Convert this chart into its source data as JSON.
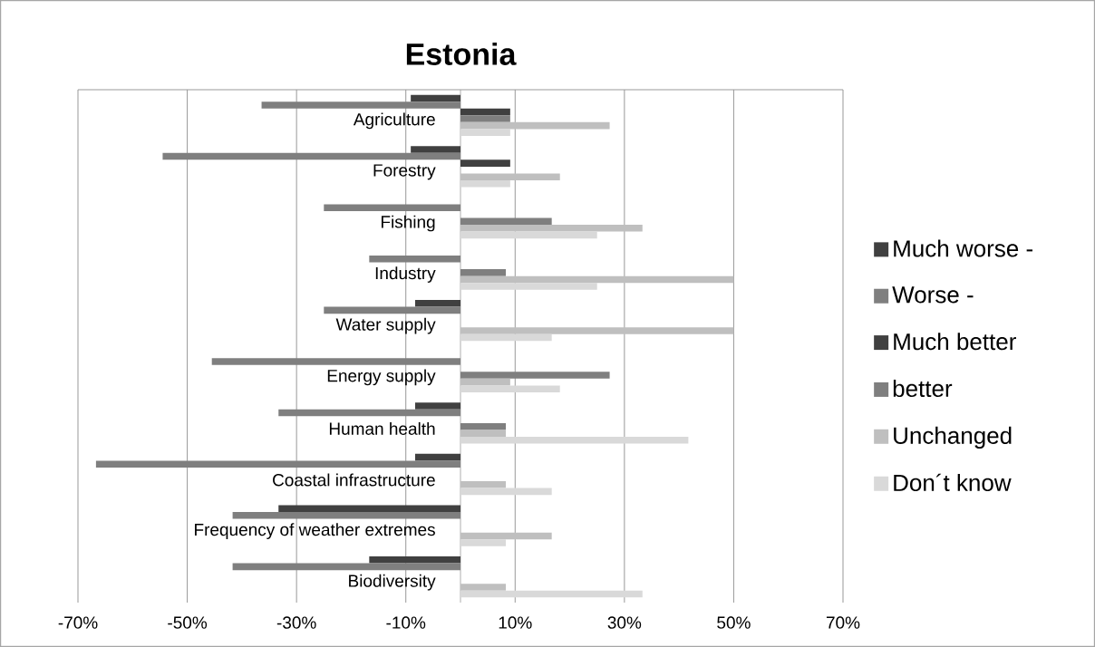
{
  "chart_data": {
    "type": "bar",
    "orientation": "horizontal",
    "title": "Estonia",
    "categories": [
      "Agriculture",
      "Forestry",
      "Fishing",
      "Industry",
      "Water supply",
      "Energy supply",
      "Human health",
      "Coastal infrastructure",
      "Frequency of weather extremes",
      "Biodiversity"
    ],
    "series": [
      {
        "name": "Much worse -",
        "color": "#404040",
        "values": [
          -9.1,
          -9.1,
          null,
          null,
          -8.3,
          null,
          -8.3,
          -8.3,
          -33.3,
          -16.7
        ]
      },
      {
        "name": "Worse -",
        "color": "#7f7f7f",
        "values": [
          -36.4,
          -54.5,
          -25,
          -16.7,
          -25,
          -45.5,
          -33.3,
          -66.7,
          -41.7,
          -41.7
        ]
      },
      {
        "name": "Much better",
        "color": "#404040",
        "values": [
          9.1,
          9.1,
          null,
          null,
          null,
          null,
          null,
          null,
          null,
          null
        ]
      },
      {
        "name": "better",
        "color": "#7f7f7f",
        "values": [
          9.1,
          null,
          16.7,
          8.3,
          null,
          27.3,
          8.3,
          null,
          null,
          null
        ]
      },
      {
        "name": "Unchanged",
        "color": "#bfbfbf",
        "values": [
          27.3,
          18.2,
          33.3,
          50,
          50,
          9.1,
          8.3,
          8.3,
          16.7,
          8.3
        ]
      },
      {
        "name": "Don´t know",
        "color": "#d9d9d9",
        "values": [
          9.1,
          9.1,
          25,
          25,
          16.7,
          18.2,
          41.7,
          16.7,
          8.3,
          33.3
        ]
      }
    ],
    "xlim": [
      -70,
      70
    ],
    "xticks": [
      {
        "value": -70,
        "label": "-70%"
      },
      {
        "value": -50,
        "label": "-50%"
      },
      {
        "value": -30,
        "label": "-30%"
      },
      {
        "value": -10,
        "label": "-10%"
      },
      {
        "value": 10,
        "label": "10%"
      },
      {
        "value": 30,
        "label": "30%"
      },
      {
        "value": 50,
        "label": "50%"
      },
      {
        "value": 70,
        "label": "70%"
      }
    ],
    "grid": "x",
    "legend": "right"
  }
}
